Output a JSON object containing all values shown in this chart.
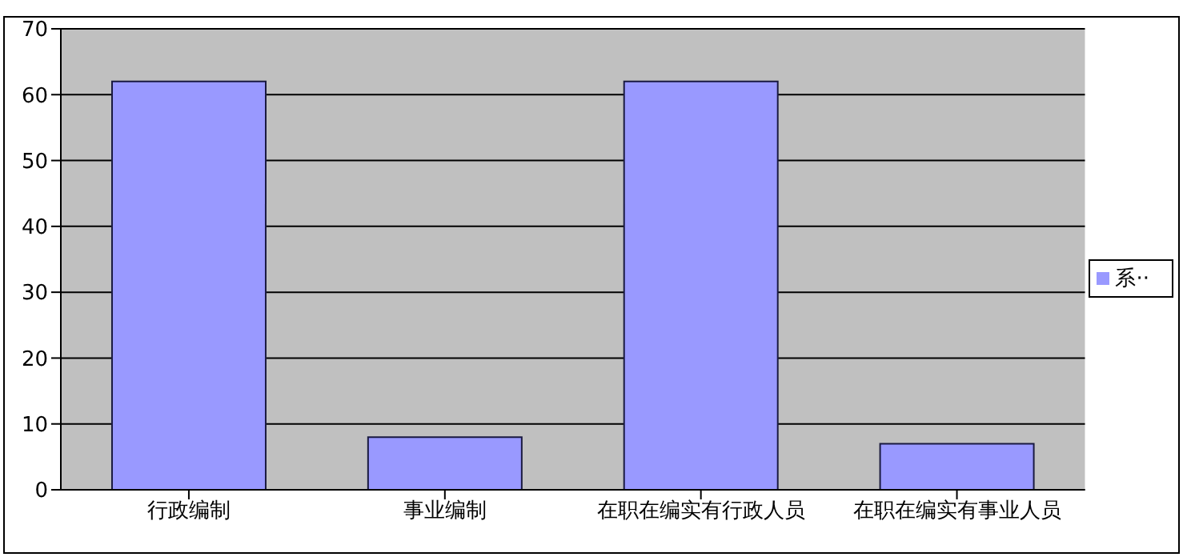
{
  "chart_data": {
    "type": "bar",
    "categories": [
      "行政编制",
      "事业编制",
      "在职在编实有行政人员",
      "在职在编实有事业人员"
    ],
    "series": [
      {
        "name": "系··",
        "color": "#9999ff",
        "values": [
          62,
          8,
          62,
          7
        ]
      }
    ],
    "ylim": [
      0,
      70
    ],
    "yticks": [
      0,
      10,
      20,
      30,
      40,
      50,
      60,
      70
    ],
    "grid": "y",
    "legend": "right"
  }
}
